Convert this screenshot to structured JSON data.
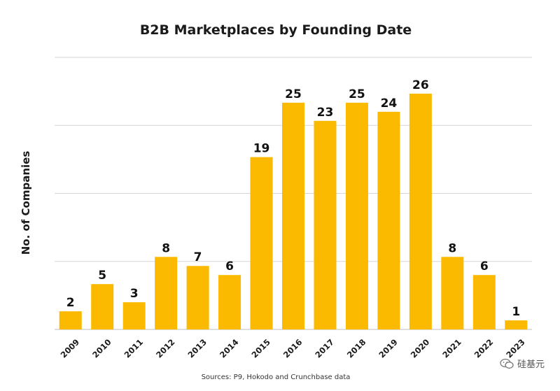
{
  "chart_data": {
    "type": "bar",
    "title": "B2B Marketplaces by Founding Date",
    "xlabel": "",
    "ylabel": "No. of Companies",
    "categories": [
      "2009",
      "2010",
      "2011",
      "2012",
      "2013",
      "2014",
      "2015",
      "2016",
      "2017",
      "2018",
      "2019",
      "2020",
      "2021",
      "2022",
      "2023"
    ],
    "values": [
      2,
      5,
      3,
      8,
      7,
      6,
      19,
      25,
      23,
      25,
      24,
      26,
      8,
      6,
      1
    ],
    "ylim": [
      0,
      30
    ],
    "gridlines": [
      0,
      7.5,
      15,
      22.5,
      30
    ],
    "grid": true,
    "bar_color": "#FBBA00",
    "source": "Sources: P9, Hokodo and Crunchbase data"
  },
  "watermark": {
    "text": "硅基元",
    "icon": "wechat-icon"
  }
}
